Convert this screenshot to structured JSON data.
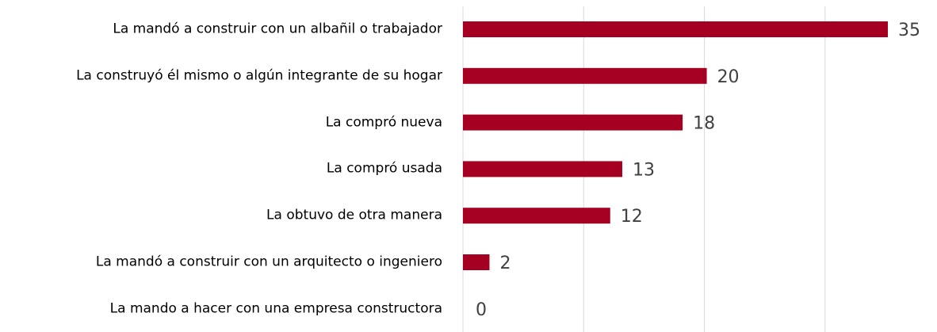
{
  "chart_data": {
    "type": "bar",
    "orientation": "horizontal",
    "categories": [
      "La mandó a construir con un albañil o trabajador",
      "La construyó él mismo o algún integrante de su hogar",
      "La compró nueva",
      "La compró usada",
      "La obtuvo de otra manera",
      "La mandó a construir con un arquitecto o ingeniero",
      "La mando a hacer con una empresa constructora"
    ],
    "values": [
      35,
      20,
      18,
      13,
      12,
      2,
      0
    ],
    "color": "#a50021",
    "xlim": [
      0,
      35
    ],
    "xticks": [
      0,
      10,
      20,
      30
    ],
    "grid": true
  }
}
